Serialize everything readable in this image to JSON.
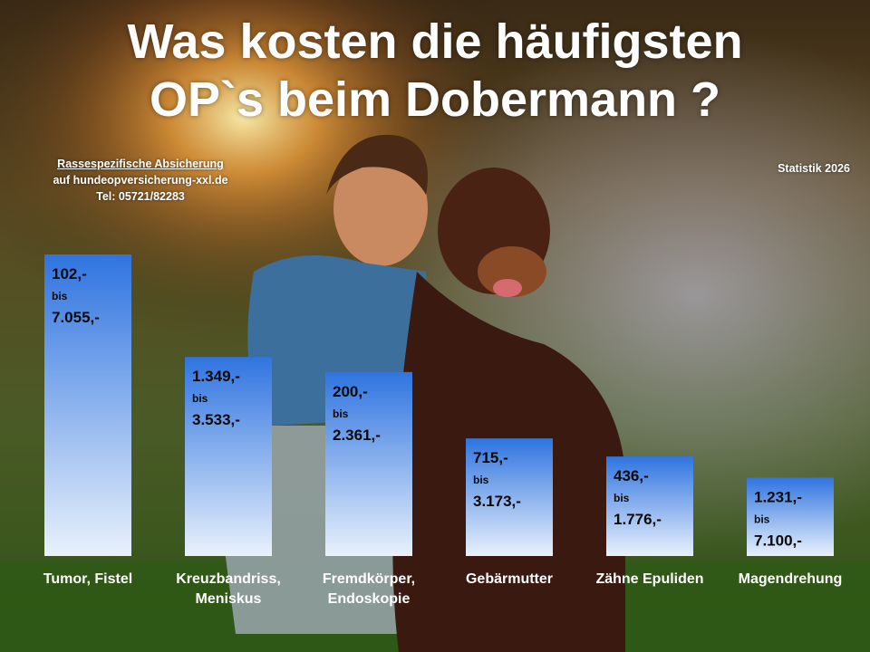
{
  "title_line1": "Was kosten die häufigsten",
  "title_line2": "OP`s beim Dobermann ?",
  "contact": {
    "line1": "Rassespezifische  Absicherung",
    "line2": "auf hundeopversicherung-xxl.de",
    "line3": "Tel: 05721/82283"
  },
  "stat_label": "Statistik 2026",
  "chart_data": {
    "type": "bar",
    "categories": [
      "Tumor, Fistel",
      "Kreuzbandriss, Meniskus",
      "Fremdkörper, Endoskopie",
      "Gebärmutter",
      "Zähne Epuliden",
      "Magendrehung"
    ],
    "category_lines": [
      [
        "Tumor, Fistel"
      ],
      [
        "Kreuzbandriss,",
        "Meniskus"
      ],
      [
        "Fremdkörper,",
        "Endoskopie"
      ],
      [
        "Gebärmutter"
      ],
      [
        "Zähne Epuliden"
      ],
      [
        "Magendrehung"
      ]
    ],
    "labels": [
      {
        "low": "102,-",
        "mid": "bis",
        "high": "7.055,-"
      },
      {
        "low": "1.349,-",
        "mid": "bis",
        "high": "3.533,-"
      },
      {
        "low": "200,-",
        "mid": "bis",
        "high": "2.361,-"
      },
      {
        "low": "715,-",
        "mid": "bis",
        "high": "3.173,-"
      },
      {
        "low": "436,-",
        "mid": "bis",
        "high": "1.776,-"
      },
      {
        "low": "1.231,-",
        "mid": "bis",
        "high": "7.100,-"
      }
    ],
    "relative_heights": [
      1.0,
      0.66,
      0.61,
      0.39,
      0.33,
      0.26
    ],
    "bar_color_top": "#2f74e0",
    "bar_color_bottom": "#e9f1fc",
    "label_color": "#0a0a0a",
    "grid": false,
    "legend": "none"
  }
}
